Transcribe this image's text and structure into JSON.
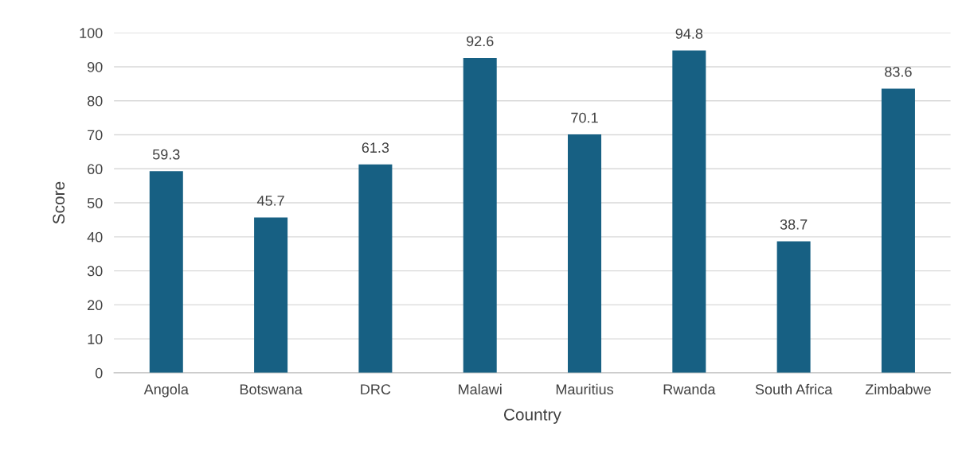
{
  "chart_data": {
    "type": "bar",
    "xlabel": "Country",
    "ylabel": "Score",
    "categories": [
      "Angola",
      "Botswana",
      "DRC",
      "Malawi",
      "Mauritius",
      "Rwanda",
      "South Africa",
      "Zimbabwe"
    ],
    "values": [
      59.3,
      45.7,
      61.3,
      92.6,
      70.1,
      94.8,
      38.7,
      83.6
    ],
    "color": "#176083",
    "ylim": [
      0,
      100
    ],
    "yticks": [
      0,
      10,
      20,
      30,
      40,
      50,
      60,
      70,
      80,
      90,
      100
    ],
    "grid": "y",
    "data_labels": true
  }
}
